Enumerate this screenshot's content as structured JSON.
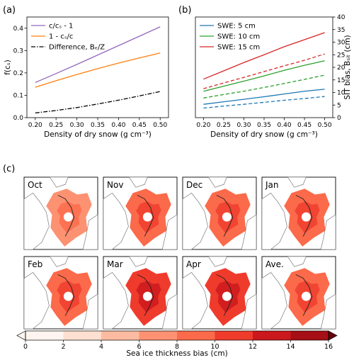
{
  "panel_labels": [
    "(a)",
    "(b)",
    "(c)"
  ],
  "chart_data": [
    {
      "panel": "(a)",
      "type": "line",
      "xlabel": "Density of dry snow (g cm⁻³)",
      "ylabel": "f(cₛ)",
      "xlim": [
        0.18,
        0.52
      ],
      "ylim": [
        0.0,
        0.45
      ],
      "xticks": [
        "0.20",
        "0.25",
        "0.30",
        "0.35",
        "0.40",
        "0.45",
        "0.50"
      ],
      "yticks": [
        "0.0",
        "0.1",
        "0.2",
        "0.3",
        "0.4"
      ],
      "legend_position": "top-left",
      "x": [
        0.2,
        0.25,
        0.3,
        0.35,
        0.4,
        0.45,
        0.5
      ],
      "series": [
        {
          "name": "c/cₛ - 1",
          "color": "#9467bd",
          "dash": "solid",
          "values": [
            0.157,
            0.197,
            0.238,
            0.28,
            0.322,
            0.364,
            0.406
          ]
        },
        {
          "name": "1 - cₛ/c",
          "color": "#ff7f0e",
          "dash": "solid",
          "values": [
            0.136,
            0.165,
            0.193,
            0.219,
            0.244,
            0.267,
            0.289
          ]
        },
        {
          "name": "Difference, Bₑ/Z",
          "color": "#000000",
          "dash": "dashdot",
          "values": [
            0.021,
            0.032,
            0.045,
            0.061,
            0.078,
            0.097,
            0.117
          ]
        }
      ]
    },
    {
      "panel": "(b)",
      "type": "line",
      "xlabel": "Density of dry snow (g cm⁻³)",
      "ylabel": "SIT bias, Bₛᵢₜ (cm)",
      "xlim": [
        0.18,
        0.52
      ],
      "ylim": [
        0,
        40
      ],
      "xticks": [
        "0.20",
        "0.25",
        "0.30",
        "0.35",
        "0.40",
        "0.45",
        "0.50"
      ],
      "yticks": [
        "0",
        "5",
        "10",
        "15",
        "20",
        "25",
        "30",
        "35",
        "40"
      ],
      "yaxis_side": "right",
      "legend_position": "top-left",
      "x": [
        0.2,
        0.25,
        0.3,
        0.35,
        0.4,
        0.45,
        0.5
      ],
      "series": [
        {
          "name": "SWE: 5 cm",
          "color": "#1f77b4",
          "dash": "solid",
          "values": [
            5.3,
            6.3,
            7.3,
            8.3,
            9.4,
            10.5,
            11.3
          ]
        },
        {
          "name": "SWE: 10 cm",
          "color": "#2ca02c",
          "dash": "solid",
          "values": [
            10.5,
            12.5,
            14.5,
            16.6,
            18.8,
            20.8,
            22.6
          ]
        },
        {
          "name": "SWE: 15 cm",
          "color": "#d62728",
          "dash": "solid",
          "values": [
            15.3,
            18.6,
            21.9,
            25.0,
            28.2,
            31.0,
            33.8
          ]
        },
        {
          "color": "#1f77b4",
          "dash": "dashed",
          "values": [
            3.8,
            4.6,
            5.3,
            6.1,
            6.9,
            7.6,
            8.4
          ]
        },
        {
          "color": "#2ca02c",
          "dash": "dashed",
          "values": [
            7.8,
            9.2,
            10.5,
            12.0,
            13.6,
            15.2,
            16.9
          ]
        },
        {
          "color": "#d62728",
          "dash": "dashed",
          "values": [
            11.5,
            13.8,
            16.0,
            18.3,
            20.6,
            22.8,
            25.3
          ]
        }
      ]
    },
    {
      "panel": "(c)",
      "type": "heatmap",
      "map_titles": [
        "Oct",
        "Nov",
        "Dec",
        "Jan",
        "Feb",
        "Mar",
        "Apr",
        "Ave."
      ],
      "colorbar_label": "Sea ice thickness bias (cm)",
      "colorbar_ticks": [
        "0",
        "2",
        "4",
        "6",
        "8",
        "10",
        "12",
        "14",
        "16"
      ],
      "colorbar_range": [
        0,
        16
      ],
      "colorbar_colors": [
        "#fff5f0",
        "#fde0d2",
        "#fcbba1",
        "#fc9272",
        "#fb6a4a",
        "#ef3b2c",
        "#cb181d",
        "#a50f15",
        "#67000d"
      ],
      "intensity": [
        0.35,
        0.55,
        0.5,
        0.55,
        0.6,
        0.8,
        0.75,
        0.6
      ]
    }
  ]
}
